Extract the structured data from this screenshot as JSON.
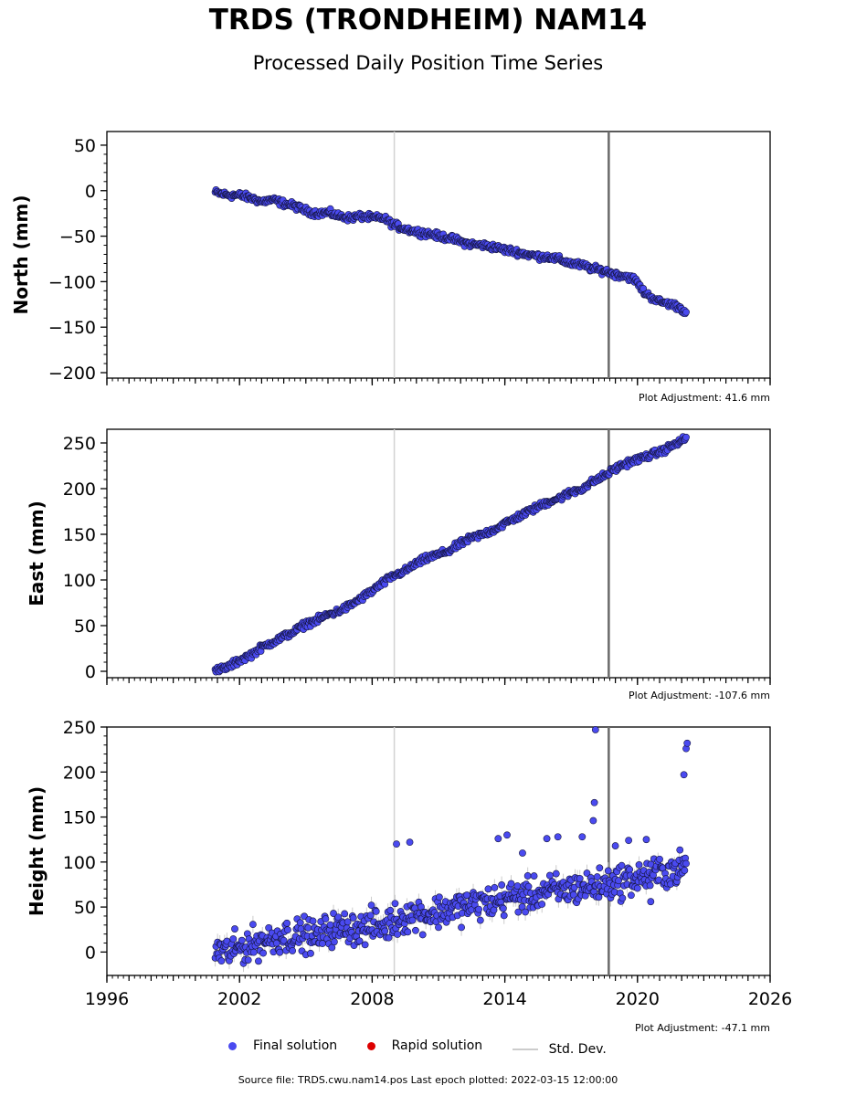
{
  "header": {
    "title": "TRDS (TRONDHEIM) NAM14",
    "subtitle": "Processed Daily Position Time Series"
  },
  "legend": {
    "final": "Final solution",
    "rapid": "Rapid solution",
    "stddev": "Std. Dev."
  },
  "footer": {
    "source": "Source file: TRDS.cwu.nam14.pos  Last epoch plotted: 2022-03-15 12:00:00"
  },
  "colors": {
    "final": "#4a4af0",
    "final_edge": "#14143c",
    "rapid": "#dd0000",
    "stddev": "#cccccc",
    "event_line": "#6e6e6e"
  },
  "chart_data": [
    {
      "type": "scatter",
      "name": "north",
      "ylabel": "North (mm)",
      "adjustment": "Plot Adjustment: 41.6 mm",
      "xlim": [
        1996,
        2026
      ],
      "ylim": [
        -206,
        65
      ],
      "yticks": [
        -200,
        -150,
        -100,
        -50,
        0,
        50
      ],
      "ytick_labels": [
        "−200",
        "−150",
        "−100",
        "−50",
        "0",
        "50"
      ],
      "xticks": [
        1996,
        2002,
        2008,
        2014,
        2020,
        2026
      ],
      "xtick_labels": [],
      "event_lines": [
        2009.0,
        2018.7
      ],
      "event_thin": [
        2009.0
      ],
      "event_thick": [
        2018.7
      ],
      "x": [
        2000.9,
        2001.5,
        2002.0,
        2002.5,
        2003.0,
        2003.5,
        2004.0,
        2004.5,
        2005.0,
        2005.5,
        2006.0,
        2006.5,
        2007.0,
        2007.5,
        2008.0,
        2008.5,
        2009.0,
        2009.5,
        2010.0,
        2010.5,
        2011.0,
        2011.5,
        2012.0,
        2012.5,
        2013.0,
        2013.5,
        2014.0,
        2014.5,
        2015.0,
        2015.5,
        2016.0,
        2016.5,
        2017.0,
        2017.5,
        2018.0,
        2018.5,
        2019.0,
        2019.5,
        2019.9,
        2020.3,
        2020.7,
        2021.0,
        2021.4,
        2021.8,
        2022.2
      ],
      "y": [
        -2,
        -5,
        -5,
        -8,
        -12,
        -10,
        -14,
        -17,
        -22,
        -25,
        -24,
        -28,
        -30,
        -28,
        -30,
        -30,
        -38,
        -42,
        -45,
        -47,
        -50,
        -52,
        -56,
        -59,
        -60,
        -62,
        -65,
        -67,
        -70,
        -72,
        -73,
        -76,
        -80,
        -82,
        -86,
        -88,
        -92,
        -94,
        -98,
        -112,
        -118,
        -122,
        -124,
        -127,
        -133
      ],
      "sigma": 3,
      "outliers": []
    },
    {
      "type": "scatter",
      "name": "east",
      "ylabel": "East (mm)",
      "adjustment": "Plot Adjustment: -107.6 mm",
      "xlim": [
        1996,
        2026
      ],
      "ylim": [
        -7,
        265
      ],
      "yticks": [
        0,
        50,
        100,
        150,
        200,
        250
      ],
      "ytick_labels": [
        "0",
        "50",
        "100",
        "150",
        "200",
        "250"
      ],
      "xticks": [
        1996,
        2002,
        2008,
        2014,
        2020,
        2026
      ],
      "xtick_labels": [],
      "event_lines": [
        2009.0,
        2018.7
      ],
      "event_thin": [
        2009.0
      ],
      "event_thick": [
        2018.7
      ],
      "x": [
        2000.9,
        2001.5,
        2002.0,
        2002.5,
        2003.0,
        2003.5,
        2004.0,
        2004.5,
        2005.0,
        2005.5,
        2006.0,
        2006.5,
        2007.0,
        2007.5,
        2008.0,
        2008.5,
        2009.0,
        2009.5,
        2010.0,
        2010.5,
        2011.0,
        2011.5,
        2012.0,
        2012.5,
        2013.0,
        2013.5,
        2014.0,
        2014.5,
        2015.0,
        2015.5,
        2016.0,
        2016.5,
        2017.0,
        2017.5,
        2018.0,
        2018.5,
        2019.0,
        2019.5,
        2020.0,
        2020.5,
        2021.0,
        2021.5,
        2022.2
      ],
      "y": [
        0,
        5,
        12,
        18,
        26,
        32,
        38,
        44,
        52,
        56,
        62,
        66,
        72,
        80,
        88,
        97,
        105,
        110,
        118,
        124,
        128,
        132,
        140,
        146,
        150,
        155,
        162,
        168,
        174,
        180,
        186,
        190,
        196,
        200,
        208,
        214,
        222,
        228,
        232,
        236,
        240,
        246,
        255
      ],
      "sigma": 3,
      "outliers": []
    },
    {
      "type": "scatter",
      "name": "height",
      "ylabel": "Height (mm)",
      "adjustment": "Plot Adjustment: -47.1 mm",
      "xlim": [
        1996,
        2026
      ],
      "ylim": [
        -26,
        250
      ],
      "yticks": [
        0,
        50,
        100,
        150,
        200,
        250
      ],
      "ytick_labels": [
        "0",
        "50",
        "100",
        "150",
        "200",
        "250"
      ],
      "xticks": [
        1996,
        2002,
        2008,
        2014,
        2020,
        2026
      ],
      "xtick_labels": [
        "1996",
        "2002",
        "2008",
        "2014",
        "2020",
        "2026"
      ],
      "event_lines": [
        2009.0,
        2018.7
      ],
      "event_thin": [
        2009.0
      ],
      "event_thick": [
        2018.7
      ],
      "x": [
        2000.9,
        2001.5,
        2002.0,
        2002.5,
        2003.0,
        2003.5,
        2004.0,
        2004.5,
        2005.0,
        2005.5,
        2006.0,
        2006.5,
        2007.0,
        2007.5,
        2008.0,
        2008.5,
        2009.0,
        2009.5,
        2010.0,
        2010.5,
        2011.0,
        2011.5,
        2012.0,
        2012.5,
        2013.0,
        2013.5,
        2014.0,
        2014.5,
        2015.0,
        2015.5,
        2016.0,
        2016.5,
        2017.0,
        2017.5,
        2018.0,
        2018.5,
        2019.0,
        2019.5,
        2020.0,
        2020.5,
        2021.0,
        2021.5,
        2022.2
      ],
      "y": [
        2,
        0,
        5,
        8,
        12,
        15,
        18,
        18,
        20,
        15,
        25,
        25,
        28,
        25,
        30,
        28,
        35,
        40,
        42,
        42,
        45,
        48,
        50,
        52,
        55,
        55,
        60,
        62,
        62,
        65,
        68,
        68,
        70,
        72,
        72,
        75,
        78,
        80,
        82,
        85,
        88,
        90,
        95
      ],
      "sigma": 15,
      "outliers": [
        [
          2009.1,
          120
        ],
        [
          2009.7,
          122
        ],
        [
          2013.7,
          126
        ],
        [
          2014.1,
          130
        ],
        [
          2014.8,
          110
        ],
        [
          2015.9,
          126
        ],
        [
          2016.4,
          128
        ],
        [
          2017.5,
          128
        ],
        [
          2018.0,
          146
        ],
        [
          2018.05,
          166
        ],
        [
          2018.1,
          247
        ],
        [
          2019.0,
          118
        ],
        [
          2019.6,
          124
        ],
        [
          2020.4,
          125
        ],
        [
          2020.6,
          56
        ],
        [
          2022.1,
          197
        ],
        [
          2022.2,
          226
        ],
        [
          2022.25,
          232
        ]
      ]
    }
  ]
}
